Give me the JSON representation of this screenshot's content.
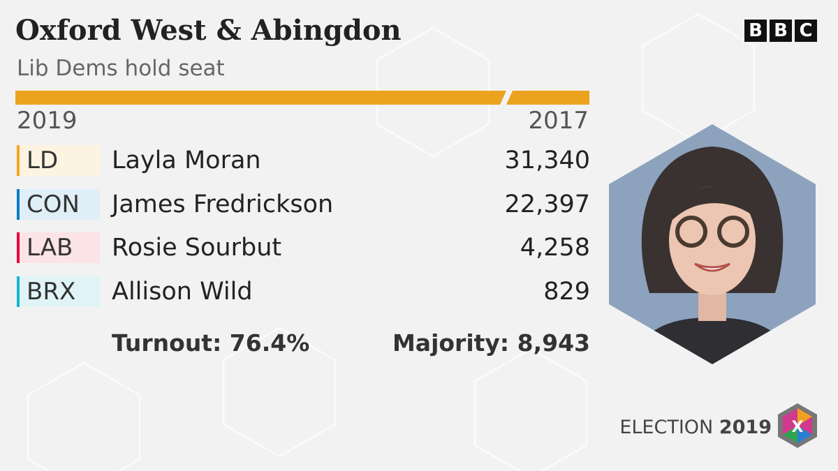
{
  "header": {
    "title": "Oxford West & Abingdon",
    "subtitle": "Lib Dems hold seat",
    "year_left": "2019",
    "year_right": "2017",
    "bar_color": "#eba21e"
  },
  "results": [
    {
      "party": "LD",
      "candidate": "Layla Moran",
      "votes": "31,340",
      "color": "#f5a623",
      "tint": "#fdf3e1"
    },
    {
      "party": "CON",
      "candidate": "James Fredrickson",
      "votes": "22,397",
      "color": "#0a7ccc",
      "tint": "#e0eef8"
    },
    {
      "party": "LAB",
      "candidate": "Rosie Sourbut",
      "votes": "4,258",
      "color": "#e4003b",
      "tint": "#fbe3e6"
    },
    {
      "party": "BRX",
      "candidate": "Allison Wild",
      "votes": "829",
      "color": "#12b6cf",
      "tint": "#e0f4f7"
    }
  ],
  "footer": {
    "turnout": "Turnout: 76.4%",
    "majority": "Majority: 8,943"
  },
  "branding": {
    "logo": [
      "B",
      "B",
      "C"
    ],
    "election": "ELECTION",
    "year": "2019",
    "badge": "X"
  }
}
